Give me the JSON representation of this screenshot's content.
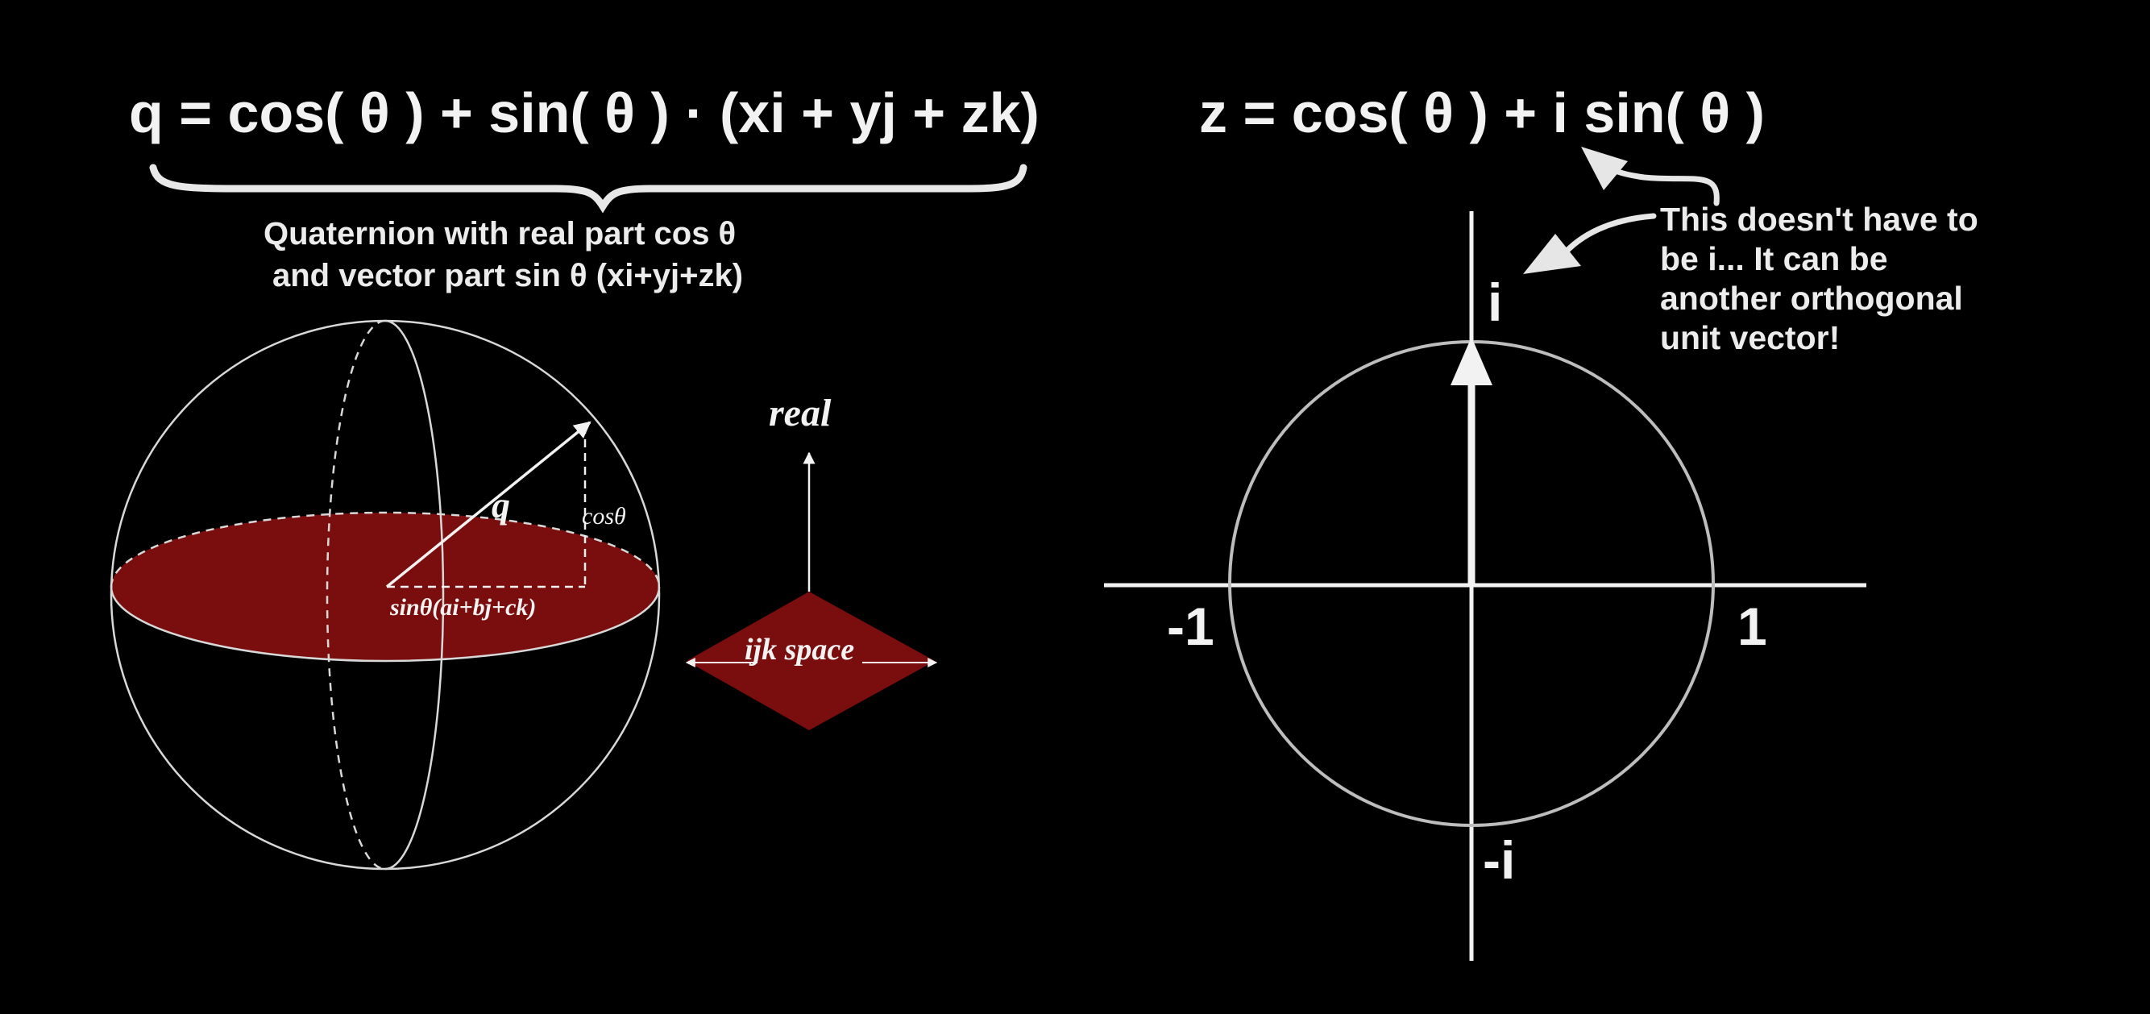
{
  "colors": {
    "background": "#000000",
    "foreground": "#f2f2f2",
    "plane_fill": "#7a0d0d",
    "circle_stroke": "#bdbdbd"
  },
  "left": {
    "formula": "q = cos( θ ) + sin( θ ) · (xi + yj + zk)",
    "caption_line1": "Quaternion with real part cos θ",
    "caption_line2": "and vector part sin θ (xi+yj+zk)",
    "sphere": {
      "vector_label": "q",
      "cos_label": "cosθ",
      "sin_label": "sinθ(ai+bj+ck)"
    },
    "legend": {
      "real_label": "real",
      "space_label": "ijk space"
    }
  },
  "right": {
    "formula": "z = cos( θ ) + i sin( θ )",
    "note_lines": [
      "This doesn't have to",
      "be i... It can be",
      "another orthogonal",
      "unit vector!"
    ],
    "axis_labels": {
      "i": "i",
      "minus_i": "-i",
      "one": "1",
      "minus_one": "-1"
    }
  }
}
